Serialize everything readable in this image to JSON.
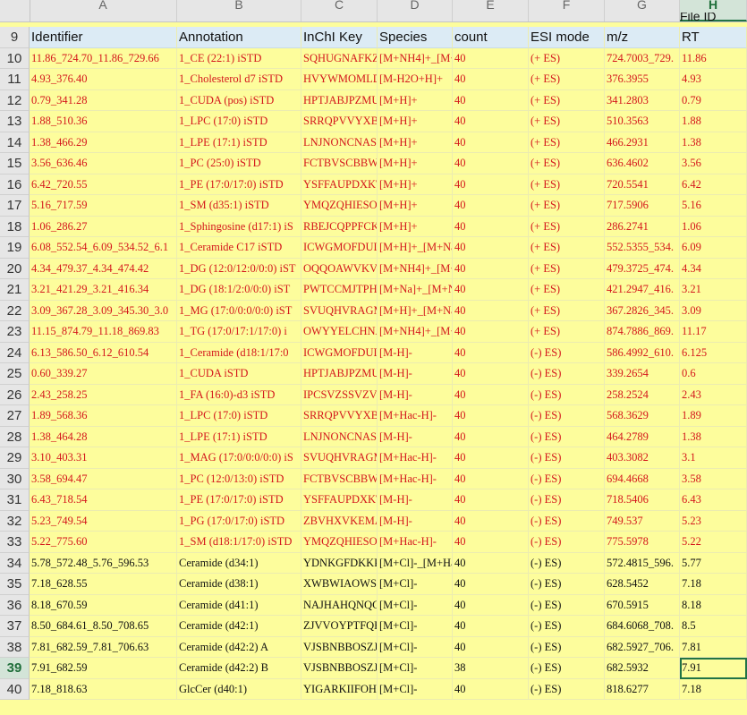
{
  "columns": [
    "A",
    "B",
    "C",
    "D",
    "E",
    "F",
    "G",
    "H"
  ],
  "selected_column": "H",
  "header_row": {
    "row_number": "9",
    "cells": [
      "Identifier",
      "Annotation",
      "InChI Key",
      "Species",
      "count",
      "ESI mode",
      "m/z",
      "RT"
    ]
  },
  "h_header_fragment": "File ID",
  "selected_row": "39",
  "rows": [
    {
      "n": "10",
      "style": "red",
      "cells": [
        "11.86_724.70_11.86_729.66",
        "1_CE (22:1) iSTD",
        "SQHUGNAFKZZ",
        "[M+NH4]+_[M+",
        "40",
        "(+ ES)",
        "724.7003_729.",
        "11.86"
      ]
    },
    {
      "n": "11",
      "style": "red",
      "cells": [
        "4.93_376.40",
        "1_Cholesterol d7 iSTD",
        "HVYWMOMLD",
        "[M-H2O+H]+",
        "40",
        "(+ ES)",
        "376.3955",
        "4.93"
      ]
    },
    {
      "n": "12",
      "style": "red",
      "cells": [
        "0.79_341.28",
        "1_CUDA (pos) iSTD",
        "HPTJABJPZMU",
        "[M+H]+",
        "40",
        "(+ ES)",
        "341.2803",
        "0.79"
      ]
    },
    {
      "n": "13",
      "style": "red",
      "cells": [
        "1.88_510.36",
        "1_LPC (17:0) iSTD",
        "SRRQPVVYXBT",
        "[M+H]+",
        "40",
        "(+ ES)",
        "510.3563",
        "1.88"
      ]
    },
    {
      "n": "14",
      "style": "red",
      "cells": [
        "1.38_466.29",
        "1_LPE (17:1) iSTD",
        "LNJNONCNASC",
        "[M+H]+",
        "40",
        "(+ ES)",
        "466.2931",
        "1.38"
      ]
    },
    {
      "n": "15",
      "style": "red",
      "cells": [
        "3.56_636.46",
        "1_PC (25:0) iSTD",
        "FCTBVSCBBWI",
        "[M+H]+",
        "40",
        "(+ ES)",
        "636.4602",
        "3.56"
      ]
    },
    {
      "n": "16",
      "style": "red",
      "cells": [
        "6.42_720.55",
        "1_PE (17:0/17:0) iSTD",
        "YSFFAUPDXKT",
        "[M+H]+",
        "40",
        "(+ ES)",
        "720.5541",
        "6.42"
      ]
    },
    {
      "n": "17",
      "style": "red",
      "cells": [
        "5.16_717.59",
        "1_SM (d35:1) iSTD",
        "YMQZQHIESOA",
        "[M+H]+",
        "40",
        "(+ ES)",
        "717.5906",
        "5.16"
      ]
    },
    {
      "n": "18",
      "style": "red",
      "cells": [
        "1.06_286.27",
        "1_Sphingosine (d17:1) iS",
        "RBEJCQPPFCK",
        "[M+H]+",
        "40",
        "(+ ES)",
        "286.2741",
        "1.06"
      ]
    },
    {
      "n": "19",
      "style": "red",
      "cells": [
        "6.08_552.54_6.09_534.52_6.1",
        "1_Ceramide C17 iSTD",
        "ICWGMOFDUL",
        "[M+H]+_[M+Na",
        "40",
        "(+ ES)",
        "552.5355_534.",
        "6.09"
      ]
    },
    {
      "n": "20",
      "style": "red",
      "cells": [
        "4.34_479.37_4.34_474.42",
        "1_DG (12:0/12:0/0:0) iST",
        "OQQOAWVKVI",
        "[M+NH4]+_[M+",
        "40",
        "(+ ES)",
        "479.3725_474.",
        "4.34"
      ]
    },
    {
      "n": "21",
      "style": "red",
      "cells": [
        "3.21_421.29_3.21_416.34",
        "1_DG (18:1/2:0/0:0) iST",
        "PWTCCMJTPHC",
        "[M+Na]+_[M+N",
        "40",
        "(+ ES)",
        "421.2947_416.",
        "3.21"
      ]
    },
    {
      "n": "22",
      "style": "red",
      "cells": [
        "3.09_367.28_3.09_345.30_3.0",
        "1_MG (17:0/0:0/0:0) iST",
        "SVUQHVRAGM",
        "[M+H]+_[M+Na",
        "40",
        "(+ ES)",
        "367.2826_345.",
        "3.09"
      ]
    },
    {
      "n": "23",
      "style": "red",
      "cells": [
        "11.15_874.79_11.18_869.83",
        "1_TG (17:0/17:1/17:0) i",
        "OWYYELCHNA",
        "[M+NH4]+_[M+",
        "40",
        "(+ ES)",
        "874.7886_869.",
        "11.17"
      ]
    },
    {
      "n": "24",
      "style": "red",
      "cells": [
        "6.13_586.50_6.12_610.54",
        "1_Ceramide (d18:1/17:0",
        "ICWGMOFDUL",
        "[M-H]-",
        "40",
        "(-) ES)",
        "586.4992_610.",
        "6.125"
      ]
    },
    {
      "n": "25",
      "style": "red",
      "cells": [
        "0.60_339.27",
        "1_CUDA iSTD",
        "HPTJABJPZMU",
        "[M-H]-",
        "40",
        "(-) ES)",
        "339.2654",
        "0.6"
      ]
    },
    {
      "n": "26",
      "style": "red",
      "cells": [
        "2.43_258.25",
        "1_FA (16:0)-d3 iSTD",
        "IPCSVZSSVZVI",
        "[M-H]-",
        "40",
        "(-) ES)",
        "258.2524",
        "2.43"
      ]
    },
    {
      "n": "27",
      "style": "red",
      "cells": [
        "1.89_568.36",
        "1_LPC (17:0) iSTD",
        "SRRQPVVYXBT",
        "[M+Hac-H]-",
        "40",
        "(-) ES)",
        "568.3629",
        "1.89"
      ]
    },
    {
      "n": "28",
      "style": "red",
      "cells": [
        "1.38_464.28",
        "1_LPE (17:1) iSTD",
        "LNJNONCNASC",
        "[M-H]-",
        "40",
        "(-) ES)",
        "464.2789",
        "1.38"
      ]
    },
    {
      "n": "29",
      "style": "red",
      "cells": [
        "3.10_403.31",
        "1_MAG (17:0/0:0/0:0) iS",
        "SVUQHVRAGM",
        "[M+Hac-H]-",
        "40",
        "(-) ES)",
        "403.3082",
        "3.1"
      ]
    },
    {
      "n": "30",
      "style": "red",
      "cells": [
        "3.58_694.47",
        "1_PC (12:0/13:0) iSTD",
        "FCTBVSCBBWI",
        "[M+Hac-H]-",
        "40",
        "(-) ES)",
        "694.4668",
        "3.58"
      ]
    },
    {
      "n": "31",
      "style": "red",
      "cells": [
        "6.43_718.54",
        "1_PE (17:0/17:0) iSTD",
        "YSFFAUPDXKT",
        "[M-H]-",
        "40",
        "(-) ES)",
        "718.5406",
        "6.43"
      ]
    },
    {
      "n": "32",
      "style": "red",
      "cells": [
        "5.23_749.54",
        "1_PG (17:0/17:0) iSTD",
        "ZBVHXVKEMA",
        "[M-H]-",
        "40",
        "(-) ES)",
        "749.537",
        "5.23"
      ]
    },
    {
      "n": "33",
      "style": "red",
      "cells": [
        "5.22_775.60",
        "1_SM (d18:1/17:0) iSTD",
        "YMQZQHIESOA",
        "[M+Hac-H]-",
        "40",
        "(-) ES)",
        "775.5978",
        "5.22"
      ]
    },
    {
      "n": "34",
      "style": "black",
      "cells": [
        "5.78_572.48_5.76_596.53",
        "Ceramide (d34:1)",
        "YDNKGFDKKR",
        "[M+Cl]-_[M+Ha",
        "40",
        "(-) ES)",
        "572.4815_596.",
        "5.77"
      ]
    },
    {
      "n": "35",
      "style": "black",
      "cells": [
        "7.18_628.55",
        "Ceramide (d38:1)",
        "XWBWIAOWS",
        "[M+Cl]-",
        "40",
        "(-) ES)",
        "628.5452",
        "7.18"
      ]
    },
    {
      "n": "36",
      "style": "black",
      "cells": [
        "8.18_670.59",
        "Ceramide (d41:1)",
        "NAJHAHQNQC",
        "[M+Cl]-",
        "40",
        "(-) ES)",
        "670.5915",
        "8.18"
      ]
    },
    {
      "n": "37",
      "style": "black",
      "cells": [
        "8.50_684.61_8.50_708.65",
        "Ceramide (d42:1)",
        "ZJVVOYPTFQE",
        "[M+Cl]-",
        "40",
        "(-) ES)",
        "684.6068_708.",
        "8.5"
      ]
    },
    {
      "n": "38",
      "style": "black",
      "cells": [
        "7.81_682.59_7.81_706.63",
        "Ceramide (d42:2) A",
        "VJSBNBBOSZJ",
        "[M+Cl]-",
        "40",
        "(-) ES)",
        "682.5927_706.",
        "7.81"
      ]
    },
    {
      "n": "39",
      "style": "black",
      "cells": [
        "7.91_682.59",
        "Ceramide (d42:2) B",
        "VJSBNBBOSZJ",
        "[M+Cl]-",
        "38",
        "(-) ES)",
        "682.5932",
        "7.91"
      ]
    },
    {
      "n": "40",
      "style": "black",
      "cells": [
        "7.18_818.63",
        "GlcCer (d40:1)",
        "YIGARKIIFOHV",
        "[M+Cl]-",
        "40",
        "(-) ES)",
        "818.6277",
        "7.18"
      ]
    }
  ]
}
